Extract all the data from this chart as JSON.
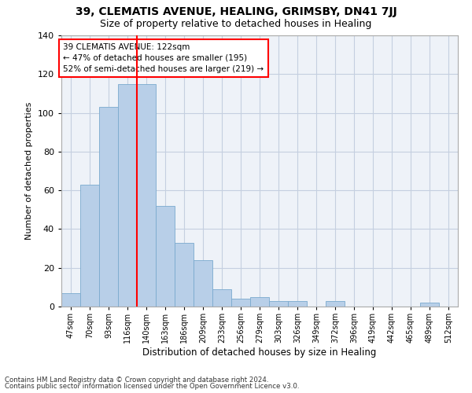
{
  "title": "39, CLEMATIS AVENUE, HEALING, GRIMSBY, DN41 7JJ",
  "subtitle": "Size of property relative to detached houses in Healing",
  "xlabel": "Distribution of detached houses by size in Healing",
  "ylabel": "Number of detached properties",
  "bar_labels": [
    "47sqm",
    "70sqm",
    "93sqm",
    "116sqm",
    "140sqm",
    "163sqm",
    "186sqm",
    "209sqm",
    "233sqm",
    "256sqm",
    "279sqm",
    "303sqm",
    "326sqm",
    "349sqm",
    "372sqm",
    "396sqm",
    "419sqm",
    "442sqm",
    "465sqm",
    "489sqm",
    "512sqm"
  ],
  "bar_values": [
    7,
    63,
    103,
    115,
    115,
    52,
    33,
    24,
    9,
    4,
    5,
    3,
    3,
    0,
    3,
    0,
    0,
    0,
    0,
    2,
    0
  ],
  "bar_color": "#b8cfe8",
  "bar_edge_color": "#7aaace",
  "vline_x": 3.5,
  "vline_color": "red",
  "annotation_title": "39 CLEMATIS AVENUE: 122sqm",
  "annotation_line1": "← 47% of detached houses are smaller (195)",
  "annotation_line2": "52% of semi-detached houses are larger (219) →",
  "annotation_box_color": "white",
  "annotation_box_edge_color": "red",
  "ylim": [
    0,
    140
  ],
  "yticks": [
    0,
    20,
    40,
    60,
    80,
    100,
    120,
    140
  ],
  "footnote1": "Contains HM Land Registry data © Crown copyright and database right 2024.",
  "footnote2": "Contains public sector information licensed under the Open Government Licence v3.0.",
  "bg_color": "#eef2f8",
  "grid_color": "#c5cfe0",
  "title_fontsize": 10,
  "subtitle_fontsize": 9,
  "annotation_fontsize": 7.5,
  "footnote_fontsize": 6.2
}
